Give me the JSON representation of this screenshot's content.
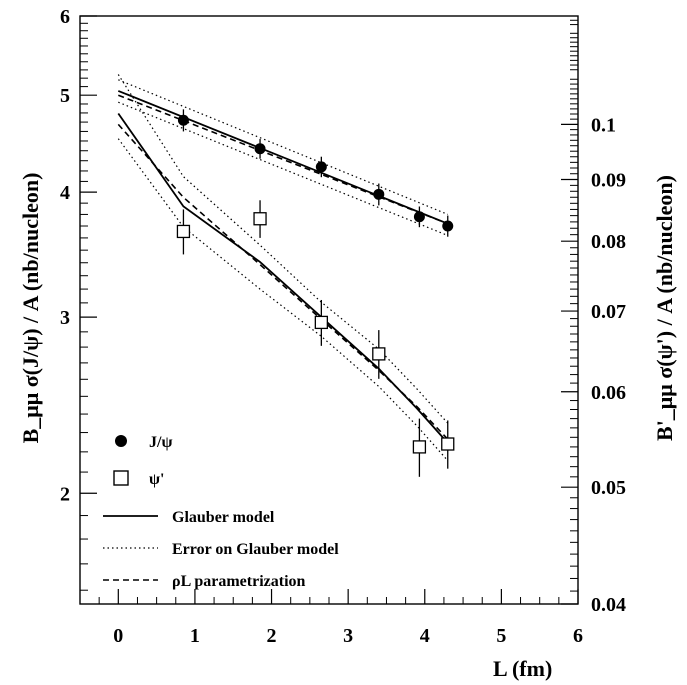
{
  "chart_data": {
    "type": "scatter",
    "xlabel": "L (fm)",
    "ylabel_left": "B_μμ σ(J/ψ) / A (nb/nucleon)",
    "ylabel_right": "B'_μμ σ(ψ') / A (nb/nucleon)",
    "xlim": [
      -0.5,
      6
    ],
    "ylim_left": [
      1.55,
      6
    ],
    "ylim_right": [
      0.04,
      0.123
    ],
    "y_scale": "log",
    "x_ticks": [
      "0",
      "1",
      "2",
      "3",
      "4",
      "5",
      "6"
    ],
    "y_ticks_left": [
      "2",
      "3",
      "4",
      "5",
      "6"
    ],
    "y_ticks_right": [
      "0.04",
      "0.05",
      "0.06",
      "0.07",
      "0.08",
      "0.09",
      "0.1"
    ],
    "legend_position": "bottom-left",
    "series": [
      {
        "name": "J/ψ",
        "marker": "filled-circle",
        "axis": "left",
        "x": [
          0.85,
          1.85,
          2.65,
          3.4,
          3.93,
          4.3
        ],
        "y": [
          4.72,
          4.42,
          4.24,
          3.98,
          3.78,
          3.7
        ],
        "err": [
          0.12,
          0.1,
          0.1,
          0.1,
          0.09,
          0.09
        ]
      },
      {
        "name": "ψ'",
        "marker": "open-square",
        "axis": "right",
        "x": [
          0.85,
          1.85,
          2.65,
          3.4,
          3.93,
          4.3
        ],
        "y": [
          0.0815,
          0.0835,
          0.0685,
          0.0645,
          0.054,
          0.0543
        ],
        "err": [
          0.0035,
          0.003,
          0.003,
          0.003,
          0.003,
          0.0025
        ]
      }
    ],
    "curves": [
      {
        "name": "Glauber model",
        "style": "solid",
        "axis": "left",
        "x": [
          0,
          4.3
        ],
        "y": [
          5.05,
          3.72
        ]
      },
      {
        "name": "Error on Glauber model",
        "style": "dotted",
        "axis": "left",
        "x": [
          0,
          4.3
        ],
        "y": [
          5.18,
          3.8
        ]
      },
      {
        "name": "Error on Glauber model",
        "style": "dotted",
        "axis": "left",
        "x": [
          0,
          4.3
        ],
        "y": [
          4.92,
          3.62
        ]
      },
      {
        "name": "ρL parametrization",
        "style": "dashed",
        "axis": "left",
        "x": [
          0,
          4.3
        ],
        "y": [
          5.0,
          3.72
        ]
      },
      {
        "name": "Glauber model",
        "style": "solid",
        "axis": "right",
        "x": [
          0,
          0.85,
          1.85,
          2.65,
          3.4,
          3.9,
          4.3
        ],
        "y": [
          0.1021,
          0.0855,
          0.0769,
          0.0692,
          0.0627,
          0.0581,
          0.0544
        ]
      },
      {
        "name": "Error on Glauber model",
        "style": "dotted",
        "axis": "right",
        "x": [
          0,
          0.85,
          1.85,
          2.65,
          3.4,
          3.9,
          4.3
        ],
        "y": [
          0.11,
          0.0905,
          0.0794,
          0.0712,
          0.0651,
          0.0603,
          0.0565
        ]
      },
      {
        "name": "Error on Glauber model",
        "style": "dotted",
        "axis": "right",
        "x": [
          0,
          0.85,
          1.85,
          2.65,
          3.4,
          3.9,
          4.3
        ],
        "y": [
          0.0973,
          0.0822,
          0.073,
          0.0667,
          0.0606,
          0.0562,
          0.0526
        ]
      },
      {
        "name": "ρL parametrization",
        "style": "dashed",
        "axis": "right",
        "x": [
          0,
          0.85,
          1.85,
          2.65,
          3.4,
          3.9,
          4.3
        ],
        "y": [
          0.1,
          0.087,
          0.0765,
          0.0689,
          0.0625,
          0.0583,
          0.0548
        ]
      }
    ]
  },
  "legend": [
    {
      "label": "J/ψ",
      "marker": "filled-circle"
    },
    {
      "label": "ψ'",
      "marker": "open-square"
    },
    {
      "label": "Glauber model",
      "marker": "solid-line"
    },
    {
      "label": "Error on Glauber model",
      "marker": "dotted-line"
    },
    {
      "label": "ρL parametrization",
      "marker": "dashed-line"
    }
  ]
}
